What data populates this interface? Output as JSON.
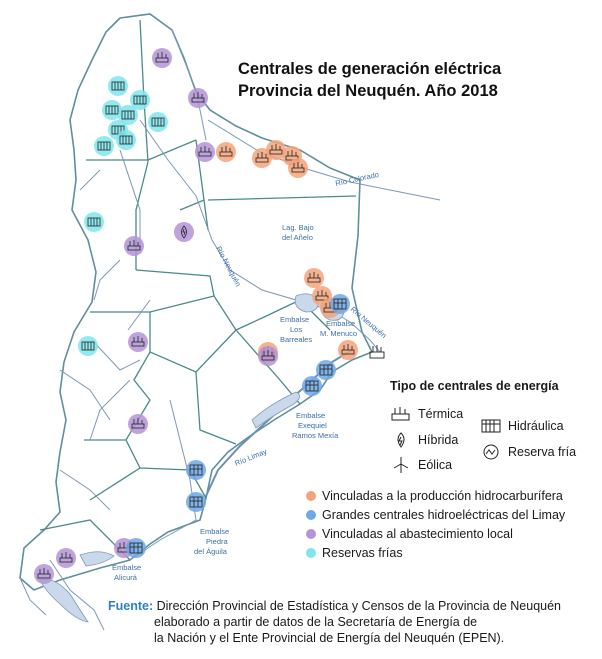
{
  "title": {
    "line1": "Centrales de generación eléctrica",
    "line2": "Provincia del Neuquén. Año 2018"
  },
  "map_labels": {
    "rio_colorado": "Río Colorado",
    "rio_neuquen_upper": "Río Neuquén",
    "rio_neuquen_lower": "Río Neuquén",
    "rio_limay": "Río Limay",
    "lago_aniello_1": "Lag. Bajo",
    "lago_aniello_2": "del Añelo",
    "barreales_1": "Embalse",
    "barreales_2": "Los",
    "barreales_3": "Barreales",
    "menuco_1": "Embalse",
    "menuco_2": "M. Menuco",
    "ramos_1": "Embalse",
    "ramos_2": "Exequiel",
    "ramos_3": "Ramos Mexía",
    "piedra_1": "Embalse",
    "piedra_2": "Piedra",
    "piedra_3": "del Águila",
    "alicura_1": "Embalse",
    "alicura_2": "Alicurá"
  },
  "legend": {
    "type_title": "Tipo de centrales de energía",
    "types": {
      "termica": "Térmica",
      "hibrida": "Híbrida",
      "eolica": "Eólica",
      "hidraulica": "Hidráulica",
      "reserva": "Reserva fría"
    },
    "categories": [
      {
        "label": "Vinculadas a la producción hidrocarburífera",
        "color": "#f4a37a"
      },
      {
        "label": "Grandes centrales hidroeléctricas del Limay",
        "color": "#6fa8e6"
      },
      {
        "label": "Vinculadas al abastecimiento local",
        "color": "#b493d6"
      },
      {
        "label": "Reservas frías",
        "color": "#7fe6ee"
      }
    ]
  },
  "source": {
    "label": "Fuente:",
    "line1": "Dirección Provincial de Estadística y Censos de la Provincia de Neuquén",
    "line2": "elaborado a partir de datos de la Secretaría de Energía de",
    "line3": "la Nación y el Ente Provincial de Energía del Neuquén (EPEN)."
  },
  "colors": {
    "hydrocarbon": "#f4a37a",
    "hydro_limay": "#6fa8e6",
    "local": "#b493d6",
    "cold_reserve": "#7fe6ee",
    "boundary": "#4a8a8a",
    "river": "#6b8fb5"
  },
  "plants": [
    {
      "cat": "local",
      "icon": "termica"
    },
    {
      "cat": "cold_reserve",
      "icon": "reserva"
    },
    {
      "cat": "cold_reserve",
      "icon": "reserva"
    },
    {
      "cat": "cold_reserve",
      "icon": "reserva"
    },
    {
      "cat": "cold_reserve",
      "icon": "reserva"
    },
    {
      "cat": "cold_reserve",
      "icon": "reserva"
    },
    {
      "cat": "cold_reserve",
      "icon": "reserva"
    },
    {
      "cat": "cold_reserve",
      "icon": "reserva"
    },
    {
      "cat": "cold_reserve",
      "icon": "reserva"
    },
    {
      "cat": "local",
      "icon": "termica"
    },
    {
      "cat": "local",
      "icon": "termica"
    },
    {
      "cat": "hydrocarbon",
      "icon": "termica"
    },
    {
      "cat": "hydrocarbon",
      "icon": "termica"
    },
    {
      "cat": "hydrocarbon",
      "icon": "termica"
    },
    {
      "cat": "hydrocarbon",
      "icon": "termica"
    },
    {
      "cat": "hydrocarbon",
      "icon": "termica"
    },
    {
      "cat": "cold_reserve",
      "icon": "reserva"
    },
    {
      "cat": "local",
      "icon": "termica"
    },
    {
      "cat": "local",
      "icon": "hibrida"
    },
    {
      "cat": "hydrocarbon",
      "icon": "termica"
    },
    {
      "cat": "hydrocarbon",
      "icon": "termica"
    },
    {
      "cat": "hydrocarbon",
      "icon": "termica"
    },
    {
      "cat": "hydro_limay",
      "icon": "hidraulica"
    },
    {
      "cat": "hydrocarbon",
      "icon": "termica"
    },
    {
      "cat": "hydrocarbon",
      "icon": "termica"
    },
    {
      "cat": "local",
      "icon": "termica"
    },
    {
      "cat": "hydro_limay",
      "icon": "hidraulica"
    },
    {
      "cat": "hydro_limay",
      "icon": "hidraulica"
    },
    {
      "cat": "cold_reserve",
      "icon": "reserva"
    },
    {
      "cat": "local",
      "icon": "termica"
    },
    {
      "cat": "local",
      "icon": "termica"
    },
    {
      "cat": "local",
      "icon": "termica"
    },
    {
      "cat": "hydro_limay",
      "icon": "hidraulica"
    },
    {
      "cat": "hydro_limay",
      "icon": "hidraulica"
    },
    {
      "cat": "hydro_limay",
      "icon": "hidraulica"
    },
    {
      "cat": "local",
      "icon": "termica"
    },
    {
      "cat": "local",
      "icon": "termica"
    }
  ]
}
